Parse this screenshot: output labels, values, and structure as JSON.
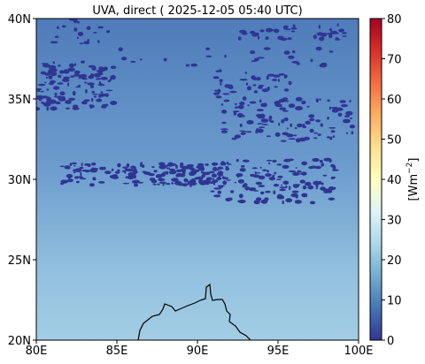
{
  "title": "UVA, direct ( 2025-12-05 05:40 UTC)",
  "chart_data": {
    "type": "heatmap",
    "title": "UVA, direct ( 2025-12-05 05:40 UTC)",
    "xlim": [
      80,
      100
    ],
    "ylim": [
      20,
      40
    ],
    "x_ticks": [
      {
        "value": 80,
        "label": "80E"
      },
      {
        "value": 85,
        "label": "85E"
      },
      {
        "value": 90,
        "label": "90E"
      },
      {
        "value": 95,
        "label": "95E"
      },
      {
        "value": 100,
        "label": "100E"
      }
    ],
    "y_ticks": [
      {
        "value": 20,
        "label": "20N"
      },
      {
        "value": 25,
        "label": "25N"
      },
      {
        "value": 30,
        "label": "30N"
      },
      {
        "value": 35,
        "label": "35N"
      },
      {
        "value": 40,
        "label": "40N"
      }
    ],
    "field": {
      "description_free": true,
      "value_top_row": 13,
      "value_bottom_row": 24,
      "cloud_value": 1
    },
    "colorbar": {
      "min": 0,
      "max": 80,
      "colormap": "RdYlBu_r",
      "label": "[Wm$^{-2}$]",
      "label_text": "[Wm",
      "label_sup": "−2",
      "label_close": "]",
      "ticks": [
        0,
        10,
        20,
        30,
        40,
        50,
        60,
        70,
        80
      ]
    }
  }
}
